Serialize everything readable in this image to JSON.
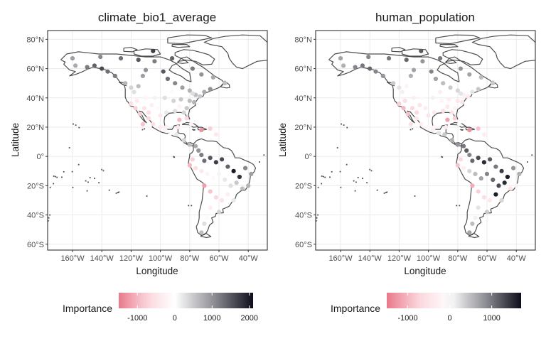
{
  "colors": {
    "neg": "#e8798a",
    "neg_light": "#fbd6dc",
    "zero": "#ffffff",
    "pos_mid": "#8e8e95",
    "pos_high": "#0d0d1a",
    "coast": "#4d4d4d",
    "grid": "#ebebeb",
    "border": "#333333"
  },
  "chart_data": [
    {
      "type": "scatter",
      "title": "climate_bio1_average",
      "xlabel": "Longitude",
      "ylabel": "Latitude",
      "xlim": [
        -177,
        -27
      ],
      "ylim": [
        -64,
        86
      ],
      "x_ticks": [
        -160,
        -140,
        -120,
        -100,
        -80,
        -60,
        -40
      ],
      "x_tick_labels": [
        "160°W",
        "140°W",
        "120°W",
        "100°W",
        "80°W",
        "60°W",
        "40°W"
      ],
      "y_ticks": [
        80,
        60,
        40,
        20,
        0,
        -20,
        -40,
        -60
      ],
      "y_tick_labels": [
        "80°N",
        "60°N",
        "40°N",
        "20°N",
        "0°",
        "20°S",
        "40°S",
        "60°S"
      ],
      "grid": true,
      "color_variable": "Importance",
      "color_range": [
        -1500,
        2100
      ],
      "legend": {
        "title": "Importance",
        "position": "bottom",
        "ticks": [
          -1000,
          0,
          1000,
          2000
        ],
        "tick_labels": [
          "-1000",
          "0",
          "1000",
          "2000"
        ]
      },
      "points": [
        [
          -158,
          62,
          800
        ],
        [
          -150,
          61,
          1200
        ],
        [
          -145,
          62,
          1400
        ],
        [
          -140,
          60,
          1600
        ],
        [
          -136,
          58,
          1300
        ],
        [
          -131,
          55,
          1200
        ],
        [
          -124,
          50,
          700
        ],
        [
          -120,
          47,
          400
        ],
        [
          -118,
          44,
          300
        ],
        [
          -115,
          48,
          600
        ],
        [
          -112,
          55,
          900
        ],
        [
          -110,
          59,
          1000
        ],
        [
          -104,
          65,
          1200
        ],
        [
          -98,
          58,
          1500
        ],
        [
          -95,
          53,
          1300
        ],
        [
          -90,
          50,
          1100
        ],
        [
          -85,
          47,
          900
        ],
        [
          -80,
          45,
          700
        ],
        [
          -76,
          42,
          600
        ],
        [
          -73,
          41,
          500
        ],
        [
          -70,
          44,
          800
        ],
        [
          -66,
          46,
          1000
        ],
        [
          -82,
          33,
          500
        ],
        [
          -84,
          30,
          400
        ],
        [
          -90,
          31,
          300
        ],
        [
          -96,
          30,
          200
        ],
        [
          -102,
          33,
          -100
        ],
        [
          -106,
          35,
          -300
        ],
        [
          -111,
          33,
          -500
        ],
        [
          -117,
          33,
          -800
        ],
        [
          -120,
          36,
          -600
        ],
        [
          -116,
          38,
          -400
        ],
        [
          -110,
          40,
          -200
        ],
        [
          -104,
          40,
          100
        ],
        [
          -97,
          40,
          300
        ],
        [
          -91,
          38,
          400
        ],
        [
          -86,
          39,
          500
        ],
        [
          -80,
          38,
          600
        ],
        [
          -77,
          37,
          700
        ],
        [
          -112,
          22,
          -900
        ],
        [
          -108,
          26,
          -700
        ],
        [
          -105,
          22,
          -600
        ],
        [
          -100,
          20,
          -400
        ],
        [
          -97,
          18,
          -200
        ],
        [
          -93,
          16,
          -100
        ],
        [
          -89,
          15,
          200
        ],
        [
          -84,
          11,
          400
        ],
        [
          -80,
          8,
          600
        ],
        [
          -76,
          7,
          800
        ],
        [
          -74,
          4,
          1000
        ],
        [
          -72,
          1,
          1200
        ],
        [
          -70,
          -3,
          1300
        ],
        [
          -66,
          -1,
          1500
        ],
        [
          -62,
          -4,
          1700
        ],
        [
          -58,
          -2,
          1600
        ],
        [
          -54,
          -7,
          1400
        ],
        [
          -50,
          -10,
          2000
        ],
        [
          -46,
          -14,
          1800
        ],
        [
          -42,
          -8,
          1100
        ],
        [
          -38,
          -12,
          900
        ],
        [
          -40,
          -20,
          700
        ],
        [
          -44,
          -22,
          600
        ],
        [
          -48,
          -18,
          500
        ],
        [
          -52,
          -20,
          300
        ],
        [
          -56,
          -16,
          200
        ],
        [
          -60,
          -12,
          100
        ],
        [
          -64,
          -15,
          -100
        ],
        [
          -68,
          -12,
          -200
        ],
        [
          -72,
          -10,
          -400
        ],
        [
          -76,
          -8,
          -600
        ],
        [
          -78,
          -2,
          -800
        ],
        [
          -80,
          -6,
          -1000
        ],
        [
          -70,
          -20,
          -1200
        ],
        [
          -66,
          -24,
          -900
        ],
        [
          -62,
          -28,
          -700
        ],
        [
          -58,
          -30,
          -500
        ],
        [
          -54,
          -26,
          -300
        ],
        [
          -50,
          -30,
          200
        ],
        [
          -66,
          -35,
          -300
        ],
        [
          -68,
          -42,
          -100
        ],
        [
          -70,
          -46,
          300
        ],
        [
          -72,
          -52,
          600
        ],
        [
          -60,
          -38,
          400
        ],
        [
          -96,
          20,
          -300
        ],
        [
          -88,
          20,
          -500
        ],
        [
          -72,
          18,
          -1300
        ],
        [
          -66,
          19,
          -800
        ],
        [
          -62,
          15,
          -400
        ],
        [
          -79,
          22,
          -200
        ],
        [
          -160,
          67,
          900
        ],
        [
          -141,
          68,
          1100
        ],
        [
          -127,
          67,
          1300
        ],
        [
          -115,
          66,
          1500
        ],
        [
          -105,
          72,
          1700
        ],
        [
          -92,
          67,
          1400
        ],
        [
          -78,
          60,
          1200
        ],
        [
          -72,
          56,
          1000
        ],
        [
          -64,
          54,
          800
        ],
        [
          -56,
          50,
          600
        ],
        [
          -92,
          44,
          -100
        ],
        [
          -87,
          34,
          -200
        ],
        [
          -100,
          28,
          -400
        ],
        [
          -108,
          30,
          -600
        ],
        [
          -114,
          29,
          -800
        ],
        [
          -87,
          25,
          -1000
        ],
        [
          -82,
          26,
          -700
        ],
        [
          -78,
          43,
          300
        ]
      ]
    },
    {
      "type": "scatter",
      "title": "human_population",
      "xlabel": "Longitude",
      "ylabel": "Latitude",
      "xlim": [
        -177,
        -27
      ],
      "ylim": [
        -64,
        86
      ],
      "x_ticks": [
        -160,
        -140,
        -120,
        -100,
        -80,
        -60,
        -40
      ],
      "x_tick_labels": [
        "160°W",
        "140°W",
        "120°W",
        "100°W",
        "80°W",
        "60°W",
        "40°W"
      ],
      "y_ticks": [
        80,
        60,
        40,
        20,
        0,
        -20,
        -40,
        -60
      ],
      "y_tick_labels": [
        "80°N",
        "60°N",
        "40°N",
        "20°N",
        "0°",
        "20°S",
        "40°S",
        "60°S"
      ],
      "grid": true,
      "color_variable": "Importance",
      "color_range": [
        -1500,
        1700
      ],
      "legend": {
        "title": "Importance",
        "position": "bottom",
        "ticks": [
          -1000,
          0,
          1000
        ],
        "tick_labels": [
          "-1000",
          "0",
          "1000"
        ]
      },
      "points": [
        [
          -158,
          62,
          600
        ],
        [
          -150,
          61,
          900
        ],
        [
          -145,
          62,
          1000
        ],
        [
          -140,
          60,
          1100
        ],
        [
          -136,
          58,
          900
        ],
        [
          -131,
          55,
          800
        ],
        [
          -124,
          50,
          400
        ],
        [
          -120,
          47,
          200
        ],
        [
          -118,
          44,
          100
        ],
        [
          -115,
          48,
          -200
        ],
        [
          -112,
          55,
          600
        ],
        [
          -110,
          59,
          700
        ],
        [
          -104,
          65,
          800
        ],
        [
          -98,
          58,
          900
        ],
        [
          -95,
          53,
          700
        ],
        [
          -90,
          50,
          500
        ],
        [
          -85,
          47,
          400
        ],
        [
          -80,
          45,
          300
        ],
        [
          -76,
          42,
          -300
        ],
        [
          -73,
          41,
          -400
        ],
        [
          -70,
          44,
          200
        ],
        [
          -66,
          46,
          400
        ],
        [
          -82,
          33,
          -200
        ],
        [
          -84,
          30,
          -500
        ],
        [
          -90,
          31,
          -600
        ],
        [
          -96,
          30,
          -400
        ],
        [
          -102,
          33,
          -300
        ],
        [
          -106,
          35,
          -500
        ],
        [
          -111,
          33,
          -700
        ],
        [
          -117,
          33,
          -1000
        ],
        [
          -120,
          36,
          -800
        ],
        [
          -116,
          38,
          -600
        ],
        [
          -110,
          40,
          -300
        ],
        [
          -104,
          40,
          -100
        ],
        [
          -97,
          40,
          100
        ],
        [
          -91,
          38,
          -200
        ],
        [
          -86,
          39,
          -300
        ],
        [
          -80,
          38,
          -400
        ],
        [
          -77,
          37,
          -500
        ],
        [
          -112,
          22,
          -600
        ],
        [
          -108,
          26,
          -400
        ],
        [
          -105,
          22,
          -300
        ],
        [
          -100,
          20,
          -200
        ],
        [
          -97,
          18,
          100
        ],
        [
          -93,
          16,
          200
        ],
        [
          -89,
          15,
          400
        ],
        [
          -84,
          11,
          600
        ],
        [
          -80,
          8,
          800
        ],
        [
          -76,
          7,
          1000
        ],
        [
          -74,
          4,
          1200
        ],
        [
          -72,
          1,
          900
        ],
        [
          -70,
          -3,
          1100
        ],
        [
          -66,
          -1,
          1300
        ],
        [
          -62,
          -4,
          1500
        ],
        [
          -58,
          -2,
          1200
        ],
        [
          -54,
          -7,
          1000
        ],
        [
          -50,
          -10,
          1400
        ],
        [
          -46,
          -14,
          1600
        ],
        [
          -42,
          -8,
          800
        ],
        [
          -38,
          -12,
          600
        ],
        [
          -40,
          -20,
          -300
        ],
        [
          -44,
          -22,
          -500
        ],
        [
          -48,
          -18,
          1500
        ],
        [
          -52,
          -20,
          1300
        ],
        [
          -56,
          -16,
          1100
        ],
        [
          -60,
          -12,
          900
        ],
        [
          -64,
          -15,
          700
        ],
        [
          -68,
          -12,
          500
        ],
        [
          -72,
          -10,
          300
        ],
        [
          -76,
          -8,
          -300
        ],
        [
          -78,
          -2,
          -700
        ],
        [
          -80,
          -6,
          -900
        ],
        [
          -70,
          -20,
          -1100
        ],
        [
          -66,
          -24,
          -800
        ],
        [
          -62,
          -28,
          -600
        ],
        [
          -58,
          -30,
          -400
        ],
        [
          -54,
          -26,
          1600
        ],
        [
          -50,
          -30,
          300
        ],
        [
          -66,
          -35,
          200
        ],
        [
          -68,
          -42,
          100
        ],
        [
          -70,
          -46,
          500
        ],
        [
          -72,
          -52,
          700
        ],
        [
          -60,
          -38,
          400
        ],
        [
          -96,
          20,
          -200
        ],
        [
          -88,
          20,
          -400
        ],
        [
          -72,
          18,
          -1300
        ],
        [
          -66,
          19,
          -900
        ],
        [
          -62,
          15,
          -300
        ],
        [
          -79,
          22,
          -100
        ],
        [
          -160,
          67,
          700
        ],
        [
          -141,
          68,
          900
        ],
        [
          -127,
          67,
          1000
        ],
        [
          -115,
          66,
          1100
        ],
        [
          -105,
          72,
          1200
        ],
        [
          -92,
          67,
          1000
        ],
        [
          -78,
          60,
          800
        ],
        [
          -72,
          56,
          700
        ],
        [
          -64,
          54,
          500
        ],
        [
          -56,
          50,
          400
        ],
        [
          -92,
          44,
          -300
        ],
        [
          -87,
          34,
          -400
        ],
        [
          -100,
          28,
          -500
        ],
        [
          -108,
          30,
          -700
        ],
        [
          -114,
          29,
          -900
        ],
        [
          -87,
          25,
          -1200
        ],
        [
          -82,
          26,
          -800
        ],
        [
          -78,
          43,
          200
        ]
      ]
    }
  ]
}
